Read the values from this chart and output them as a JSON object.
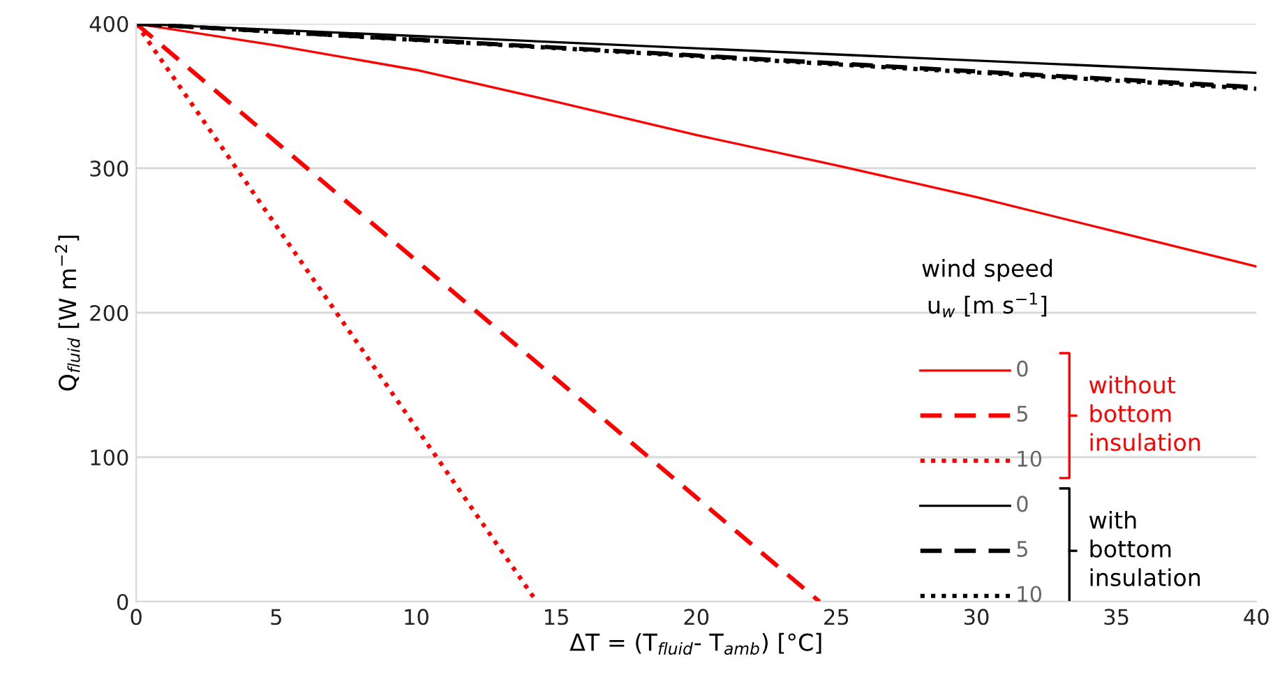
{
  "chart_data": {
    "type": "line",
    "xlabel": "ΔT = (T$_{fluid}$- T$_{amb}$) [°C]",
    "ylabel": "Q$_{fluid}$ [W m$^{−2}$]",
    "legend_title": "wind speed\nu$_{w}$ [m s$^{−1}$]",
    "annotations": [
      "without\nbottom\ninsulation",
      "with\nbottom\ninsulation"
    ],
    "xlim": [
      0,
      40
    ],
    "xticks": [
      0,
      5,
      10,
      15,
      20,
      25,
      30,
      35,
      40
    ],
    "ylim": [
      0,
      400
    ],
    "yticks": [
      0,
      100,
      200,
      300,
      400
    ],
    "grid": "y",
    "legend": "right",
    "marker": "none",
    "series": [
      {
        "name": "0",
        "color": "#ff0000",
        "line_style": "solid",
        "x": [
          0,
          5,
          10,
          15,
          20,
          25,
          30,
          35,
          40
        ],
        "values": [
          400,
          385,
          368,
          346,
          323,
          302,
          280,
          256,
          232
        ]
      },
      {
        "name": "5",
        "color": "#ff0000",
        "line_style": "dashed",
        "x": [
          0,
          24.4
        ],
        "values": [
          400,
          0
        ]
      },
      {
        "name": "10",
        "color": "#ff0000",
        "line_style": "dotted",
        "x": [
          0,
          14.3
        ],
        "values": [
          400,
          0
        ]
      },
      {
        "name": "0",
        "color": "#000000",
        "line_style": "solid",
        "x": [
          0,
          40
        ],
        "values": [
          400,
          366
        ]
      },
      {
        "name": "5",
        "color": "#000000",
        "line_style": "dashed",
        "x": [
          0,
          40
        ],
        "values": [
          400,
          356
        ]
      },
      {
        "name": "10",
        "color": "#000000",
        "line_style": "dotted",
        "x": [
          0,
          40
        ],
        "values": [
          400,
          355
        ]
      }
    ]
  }
}
